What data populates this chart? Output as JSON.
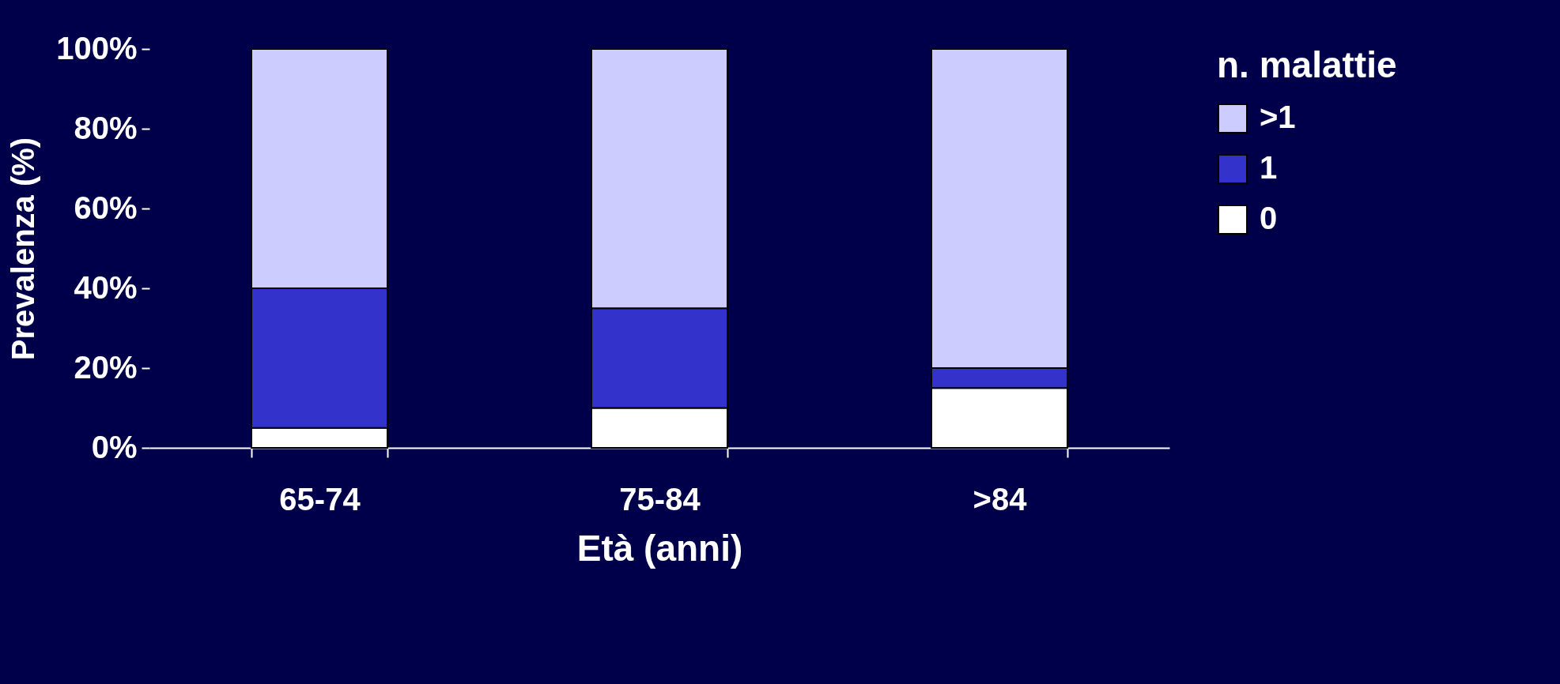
{
  "chart_data": {
    "type": "bar",
    "stacked": true,
    "xlabel": "Età (anni)",
    "ylabel": "Prevalenza (%)",
    "legend_title": "n. malattie",
    "categories": [
      "65-74",
      "75-84",
      ">84"
    ],
    "series": [
      {
        "name": "0",
        "color": "#ffffff",
        "values": [
          5,
          10,
          15
        ]
      },
      {
        "name": "1",
        "color": "#3333cc",
        "values": [
          35,
          25,
          5
        ]
      },
      {
        "name": ">1",
        "color": "#ccccff",
        "values": [
          60,
          65,
          80
        ]
      }
    ],
    "ylim": [
      0,
      100
    ],
    "yticks": [
      {
        "value": 0,
        "label": "0%"
      },
      {
        "value": 20,
        "label": "20%"
      },
      {
        "value": 40,
        "label": "40%"
      },
      {
        "value": 60,
        "label": "60%"
      },
      {
        "value": 80,
        "label": "80%"
      },
      {
        "value": 100,
        "label": "100%"
      }
    ],
    "grid": false,
    "legend": "top right"
  }
}
